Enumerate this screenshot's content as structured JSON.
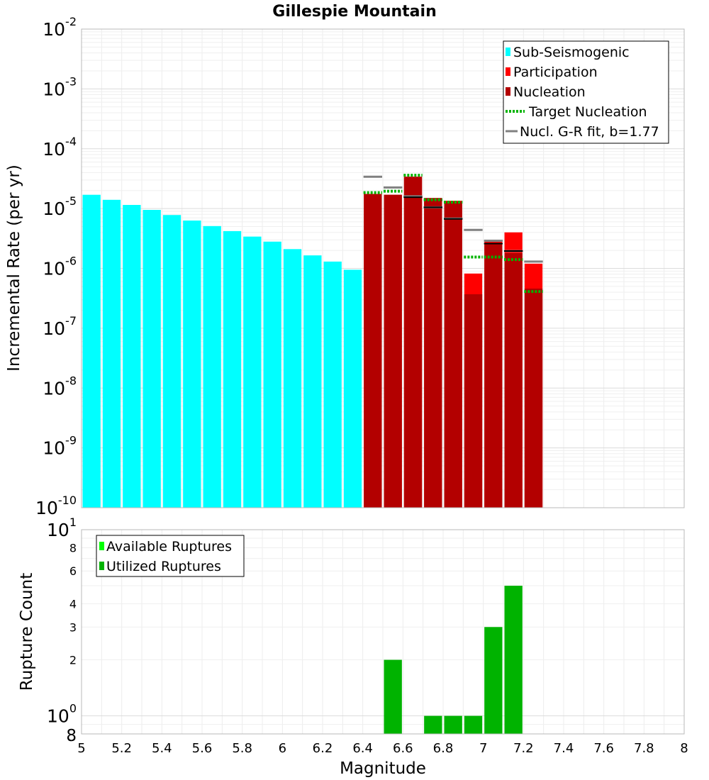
{
  "chart_data": [
    {
      "type": "bar",
      "title": "Gillespie Mountain",
      "xlabel": "",
      "ylabel": "Incremental Rate (per yr)",
      "yscale": "log",
      "xlim": [
        5,
        8
      ],
      "ylim": [
        1e-10,
        0.01
      ],
      "bin_width": 0.1,
      "y_tick_exponents": [
        {
          "base": "10",
          "exp": "-2",
          "value": 0.01
        },
        {
          "base": "10",
          "exp": "-3",
          "value": 0.001
        },
        {
          "base": "10",
          "exp": "-4",
          "value": 0.0001
        },
        {
          "base": "10",
          "exp": "-5",
          "value": 1e-05
        },
        {
          "base": "10",
          "exp": "-6",
          "value": 1e-06
        },
        {
          "base": "10",
          "exp": "-7",
          "value": 1e-07
        },
        {
          "base": "10",
          "exp": "-8",
          "value": 1e-08
        },
        {
          "base": "10",
          "exp": "-9",
          "value": 1e-09
        },
        {
          "base": "10",
          "exp": "-10",
          "value": 1e-10
        }
      ],
      "legend": [
        {
          "label": "Sub-Seismogenic",
          "color": "#00ffff",
          "kind": "bar"
        },
        {
          "label": "Participation",
          "color": "#ff0000",
          "kind": "bar"
        },
        {
          "label": "Nucleation",
          "color": "#b30000",
          "kind": "bar"
        },
        {
          "label": "Target Nucleation",
          "color": "#00b300",
          "kind": "dotted"
        },
        {
          "label": "Nucl. G-R fit, b=1.77",
          "color": "#808080",
          "kind": "line"
        }
      ],
      "legend_position": "top-right",
      "series": [
        {
          "name": "Sub-Seismogenic",
          "color": "#00ffff",
          "x": [
            5.05,
            5.15,
            5.25,
            5.35,
            5.45,
            5.55,
            5.65,
            5.75,
            5.85,
            5.95,
            6.05,
            6.15,
            6.25,
            6.35
          ],
          "values": [
            1.7e-05,
            1.4e-05,
            1.15e-05,
            9.5e-06,
            7.8e-06,
            6.3e-06,
            5.1e-06,
            4.2e-06,
            3.4e-06,
            2.8e-06,
            2.1e-06,
            1.65e-06,
            1.3e-06,
            9.5e-07
          ]
        },
        {
          "name": "Participation",
          "color": "#ff0000",
          "x": [
            6.45,
            6.55,
            6.65,
            6.75,
            6.85,
            6.95,
            7.05,
            7.15,
            7.25
          ],
          "values": [
            1.75e-05,
            1.7e-05,
            3.4e-05,
            1.5e-05,
            1.35e-05,
            8.2e-07,
            2.9e-06,
            4e-06,
            1.2e-06
          ]
        },
        {
          "name": "Nucleation",
          "color": "#b30000",
          "x": [
            6.45,
            6.55,
            6.65,
            6.75,
            6.85,
            6.95,
            7.05,
            7.15,
            7.25
          ],
          "values": [
            1.75e-05,
            1.7e-05,
            3.4e-05,
            1.5e-05,
            1.3e-05,
            3.7e-07,
            2.6e-06,
            1.8e-06,
            4.6e-07
          ]
        },
        {
          "name": "Nucl. G-R fit, b=1.77",
          "color": "#808080",
          "x": [
            6.45,
            6.55,
            6.65,
            6.75,
            6.85,
            6.95,
            7.05,
            7.15,
            7.25
          ],
          "values": [
            3.4e-05,
            2.25e-05,
            1.6e-05,
            1.05e-05,
            6.8e-06,
            4.4e-06,
            2.9e-06,
            1.95e-06,
            1.3e-06
          ]
        },
        {
          "name": "Target Nucleation",
          "color": "#00b300",
          "x": [
            6.45,
            6.55,
            6.65,
            6.75,
            6.85,
            6.95,
            7.05,
            7.15,
            7.25
          ],
          "values": [
            1.85e-05,
            1.95e-05,
            3.6e-05,
            1.4e-05,
            1.28e-05,
            1.55e-06,
            1.55e-06,
            1.4e-06,
            4.1e-07
          ]
        },
        {
          "name": "Nucleation (black marker)",
          "color": "#000000",
          "x": [
            6.65,
            6.75,
            6.85,
            7.05,
            7.15
          ],
          "values": [
            1.55e-05,
            1.05e-05,
            6.7e-06,
            2.6e-06,
            1.95e-06
          ]
        }
      ]
    },
    {
      "type": "bar",
      "xlabel": "Magnitude",
      "ylabel": "Rupture Count",
      "yscale": "log",
      "xlim": [
        5,
        8
      ],
      "ylim": [
        0.8,
        10
      ],
      "x_ticks": [
        "5",
        "5.2",
        "5.4",
        "5.6",
        "5.8",
        "6",
        "6.2",
        "6.4",
        "6.6",
        "6.8",
        "7",
        "7.2",
        "7.4",
        "7.6",
        "7.8",
        "8"
      ],
      "y_minor_ticks": [
        {
          "label": "8",
          "value": 8
        },
        {
          "label": "6",
          "value": 6
        },
        {
          "label": "4",
          "value": 4
        },
        {
          "label": "3",
          "value": 3
        },
        {
          "label": "2",
          "value": 2
        },
        {
          "label": "8",
          "value": 0.8
        }
      ],
      "y_major_ticks": [
        {
          "base": "10",
          "exp": "1",
          "value": 10
        },
        {
          "base": "10",
          "exp": "0",
          "value": 1
        }
      ],
      "legend": [
        {
          "label": "Available Ruptures",
          "color": "#00ff00"
        },
        {
          "label": "Utilized Ruptures",
          "color": "#00b300"
        }
      ],
      "legend_position": "top-left",
      "series": [
        {
          "name": "Utilized Ruptures",
          "color": "#00b300",
          "x": [
            6.55,
            6.75,
            6.85,
            6.95,
            7.05,
            7.15
          ],
          "values": [
            2,
            1,
            1,
            1,
            3,
            5
          ]
        }
      ]
    }
  ]
}
